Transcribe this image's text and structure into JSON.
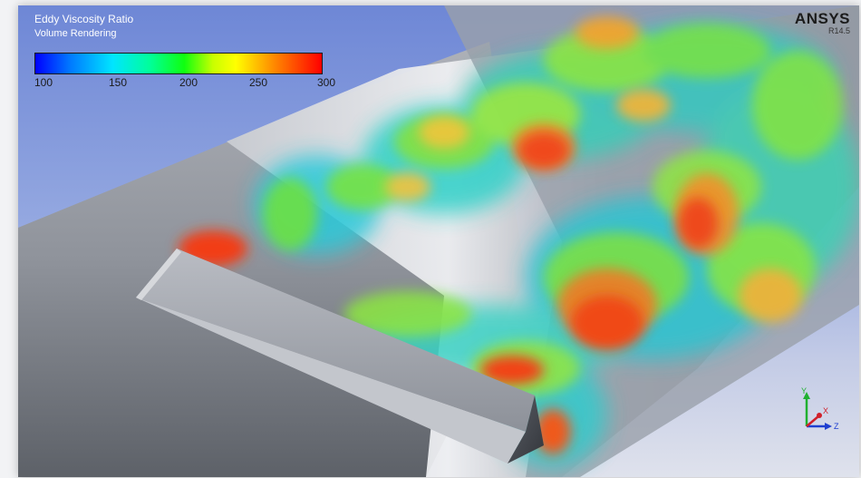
{
  "legend": {
    "title": "Eddy Viscosity Ratio",
    "subtitle": "Volume Rendering",
    "ticks": [
      "100",
      "150",
      "200",
      "250",
      "300"
    ],
    "min": 100,
    "max": 300
  },
  "brand": {
    "name": "ANSYS",
    "version": "R14.5"
  },
  "axes": {
    "x": "X",
    "y": "Y",
    "z": "Z",
    "colors": {
      "x": "#d0202a",
      "y": "#20b030",
      "z": "#1f3fd0"
    }
  },
  "colors": {
    "background_top": "#6e87d6",
    "background_bottom": "#dfe2ec",
    "geometry": "#9a9ea6",
    "low": "#0078ff",
    "mid": "#10ff10",
    "high": "#ff0000"
  }
}
